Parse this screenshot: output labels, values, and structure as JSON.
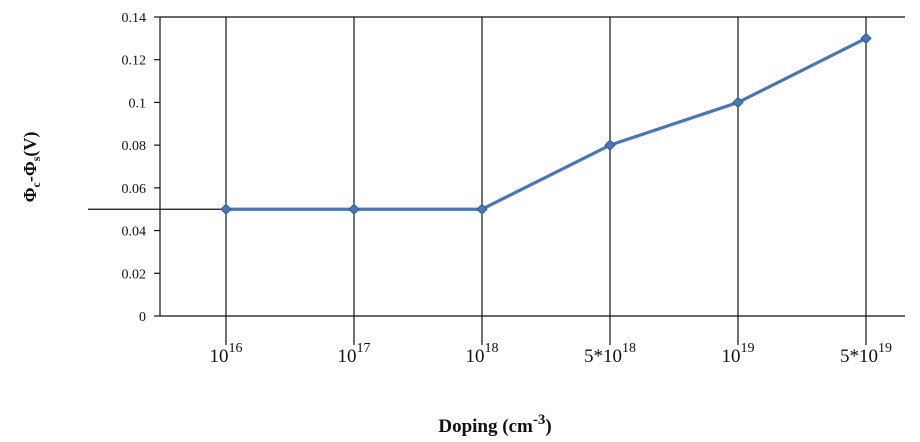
{
  "chart_data": {
    "type": "line",
    "xlabel": "Doping (cm",
    "xlabel_sup": "-3",
    "xlabel_end": ")",
    "ylabel_parts": [
      "Φ",
      "c",
      "-Φ",
      "s",
      "(V)"
    ],
    "categories": [
      {
        "base": "10",
        "sup": "16"
      },
      {
        "base": "10",
        "sup": "17"
      },
      {
        "base": "10",
        "sup": "18"
      },
      {
        "base": "5*10",
        "sup": "18"
      },
      {
        "base": "10",
        "sup": "19"
      },
      {
        "base": "5*10",
        "sup": "19"
      }
    ],
    "y_ticks": [
      "0",
      "0.02",
      "0.04",
      "0.06",
      "0.08",
      "0.1",
      "0.12",
      "0.14"
    ],
    "values": [
      0.05,
      0.05,
      0.05,
      0.08,
      0.1,
      0.13
    ],
    "ylim": [
      0,
      0.14
    ],
    "grid": "vertical",
    "line_color": "#4a76b5",
    "marker_color": "#4a76b5"
  }
}
